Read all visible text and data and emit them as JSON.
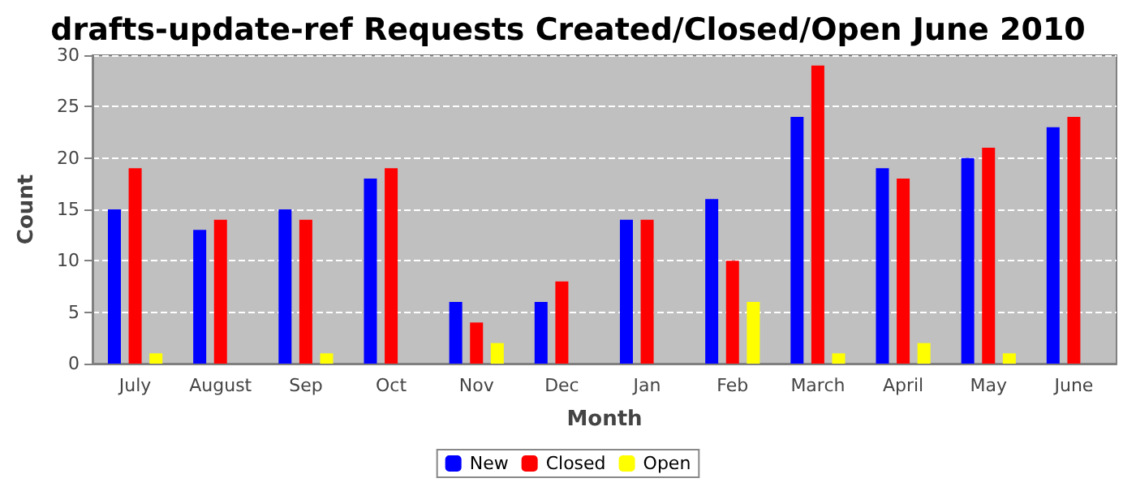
{
  "chart_data": {
    "type": "bar",
    "title": "drafts-update-ref Requests Created/Closed/Open June 2010",
    "xlabel": "Month",
    "ylabel": "Count",
    "categories": [
      "July",
      "August",
      "Sep",
      "Oct",
      "Nov",
      "Dec",
      "Jan",
      "Feb",
      "March",
      "April",
      "May",
      "June"
    ],
    "series": [
      {
        "name": "New",
        "color": "#0000ff",
        "values": [
          15,
          13,
          15,
          18,
          6,
          6,
          14,
          16,
          24,
          19,
          20,
          23
        ]
      },
      {
        "name": "Closed",
        "color": "#ff0000",
        "values": [
          19,
          14,
          14,
          19,
          4,
          8,
          14,
          10,
          29,
          18,
          21,
          24
        ]
      },
      {
        "name": "Open",
        "color": "#ffff00",
        "values": [
          1,
          0,
          1,
          0,
          2,
          0,
          0,
          6,
          1,
          2,
          1,
          0
        ]
      }
    ],
    "ylim": [
      0,
      30
    ],
    "yticks": [
      0,
      5,
      10,
      15,
      20,
      25,
      30
    ],
    "grid": "y",
    "legend": "bottom"
  }
}
